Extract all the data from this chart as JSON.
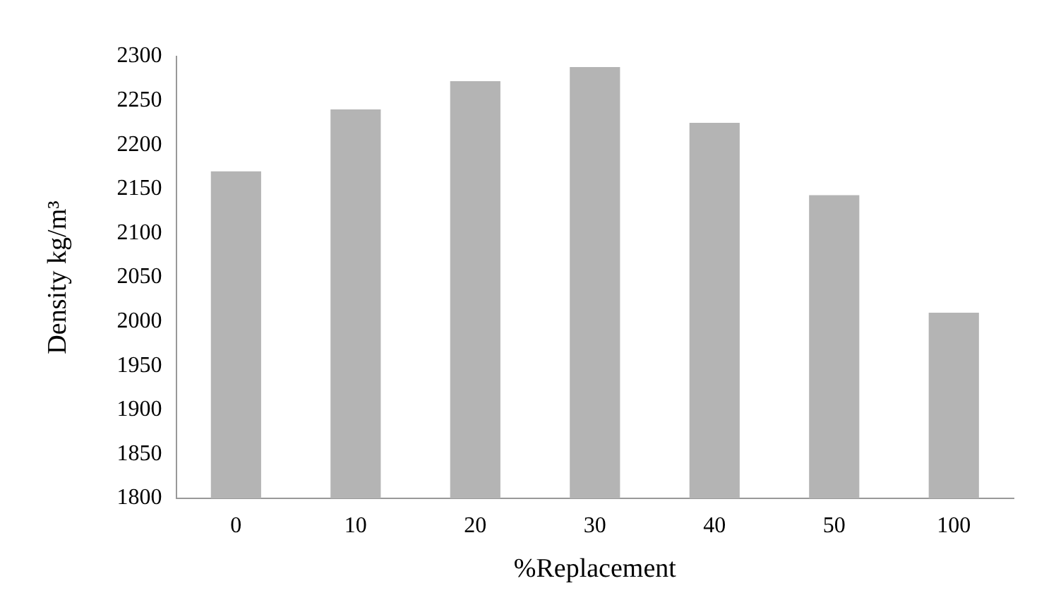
{
  "chart_data": {
    "type": "bar",
    "xlabel": "%Replacement",
    "ylabel": "Density kg/m³",
    "categories": [
      "0",
      "10",
      "20",
      "30",
      "40",
      "50",
      "100"
    ],
    "values": [
      2170,
      2240,
      2272,
      2288,
      2225,
      2143,
      2010
    ],
    "color": "#b4b4b4",
    "ylim": [
      1800,
      2300
    ],
    "yticks": [
      1800,
      1850,
      1900,
      1950,
      2000,
      2050,
      2100,
      2150,
      2200,
      2250,
      2300
    ],
    "grid": false,
    "legend": false
  }
}
